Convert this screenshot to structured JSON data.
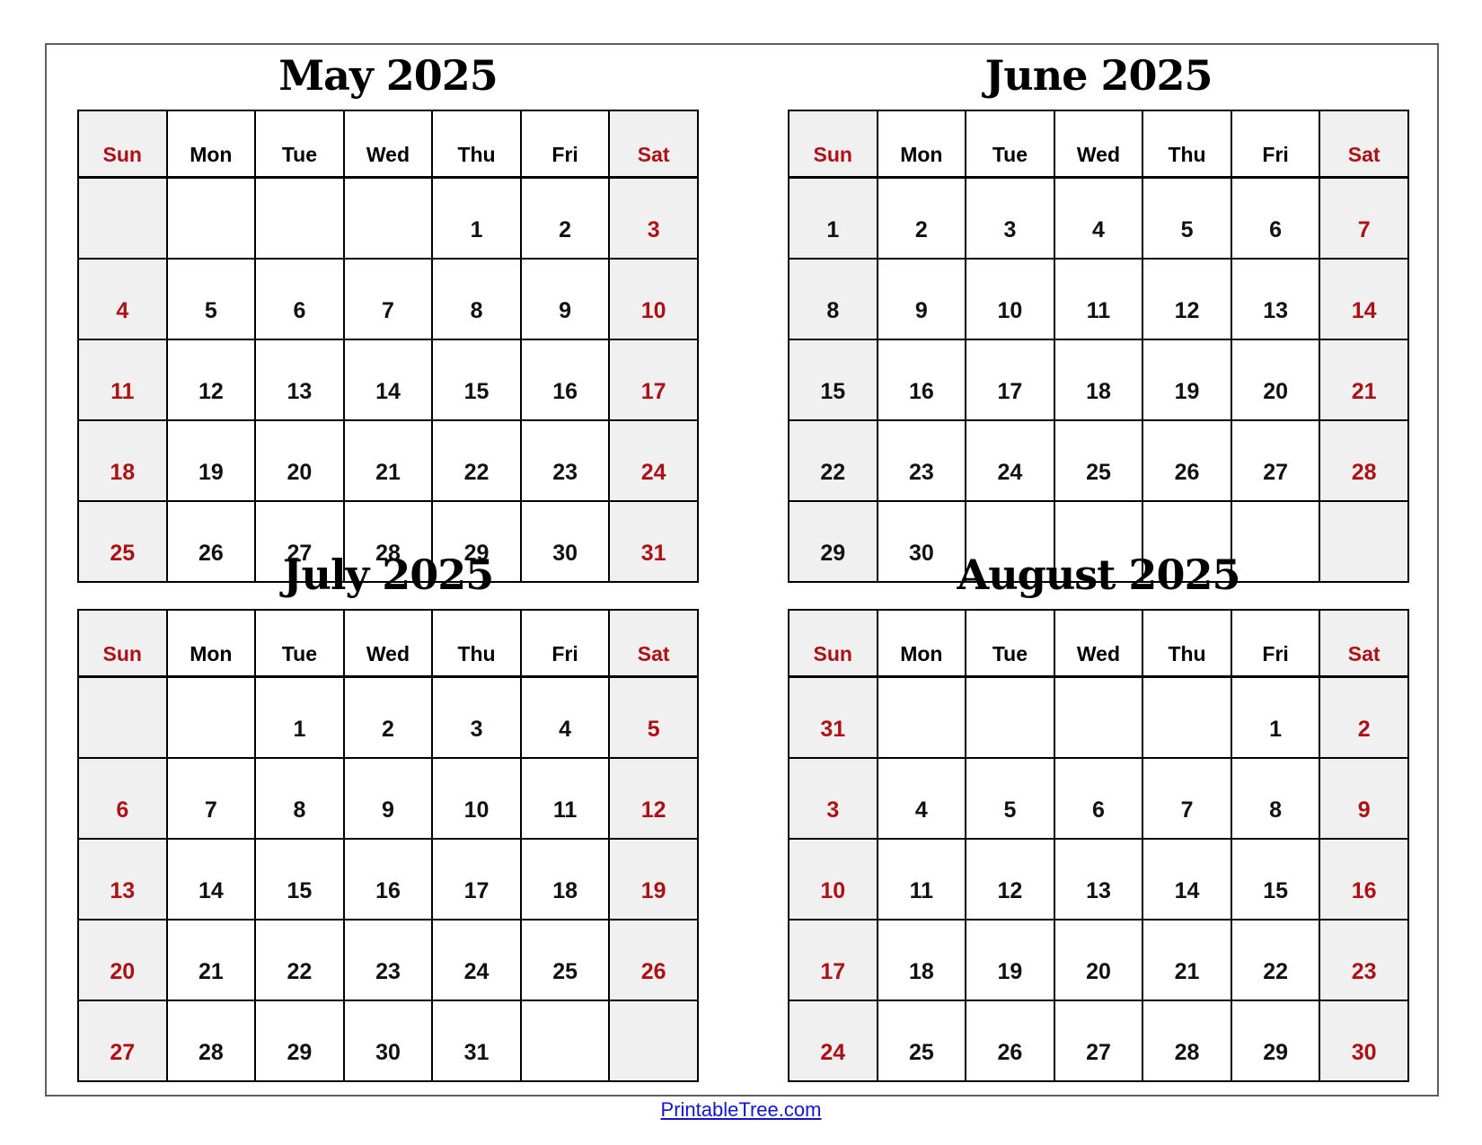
{
  "page": {
    "footer": {
      "label": "PrintableTree.com"
    }
  },
  "theme": {
    "accent_red": "#ad1115",
    "weekend_bg": "#f0f0f0",
    "grid_border": "#000000",
    "frame_border": "#5f5f5f",
    "link_blue": "#1515cd"
  },
  "weekdays": [
    "Sun",
    "Mon",
    "Tue",
    "Wed",
    "Thu",
    "Fri",
    "Sat"
  ],
  "calendars": [
    {
      "title": "May 2025",
      "sunday_red": true,
      "rows": [
        [
          "",
          "",
          "",
          "",
          "1",
          "2",
          "3"
        ],
        [
          "4",
          "5",
          "6",
          "7",
          "8",
          "9",
          "10"
        ],
        [
          "11",
          "12",
          "13",
          "14",
          "15",
          "16",
          "17"
        ],
        [
          "18",
          "19",
          "20",
          "21",
          "22",
          "23",
          "24"
        ],
        [
          "25",
          "26",
          "27",
          "28",
          "29",
          "30",
          "31"
        ]
      ]
    },
    {
      "title": "June 2025",
      "sunday_red": false,
      "rows": [
        [
          "1",
          "2",
          "3",
          "4",
          "5",
          "6",
          "7"
        ],
        [
          "8",
          "9",
          "10",
          "11",
          "12",
          "13",
          "14"
        ],
        [
          "15",
          "16",
          "17",
          "18",
          "19",
          "20",
          "21"
        ],
        [
          "22",
          "23",
          "24",
          "25",
          "26",
          "27",
          "28"
        ],
        [
          "29",
          "30",
          "",
          "",
          "",
          "",
          ""
        ]
      ]
    },
    {
      "title": "July 2025",
      "sunday_red": true,
      "rows": [
        [
          "",
          "",
          "1",
          "2",
          "3",
          "4",
          "5"
        ],
        [
          "6",
          "7",
          "8",
          "9",
          "10",
          "11",
          "12"
        ],
        [
          "13",
          "14",
          "15",
          "16",
          "17",
          "18",
          "19"
        ],
        [
          "20",
          "21",
          "22",
          "23",
          "24",
          "25",
          "26"
        ],
        [
          "27",
          "28",
          "29",
          "30",
          "31",
          "",
          ""
        ]
      ]
    },
    {
      "title": "August 2025",
      "sunday_red": true,
      "rows": [
        [
          "31",
          "",
          "",
          "",
          "",
          "1",
          "2"
        ],
        [
          "3",
          "4",
          "5",
          "6",
          "7",
          "8",
          "9"
        ],
        [
          "10",
          "11",
          "12",
          "13",
          "14",
          "15",
          "16"
        ],
        [
          "17",
          "18",
          "19",
          "20",
          "21",
          "22",
          "23"
        ],
        [
          "24",
          "25",
          "26",
          "27",
          "28",
          "29",
          "30"
        ]
      ]
    }
  ]
}
